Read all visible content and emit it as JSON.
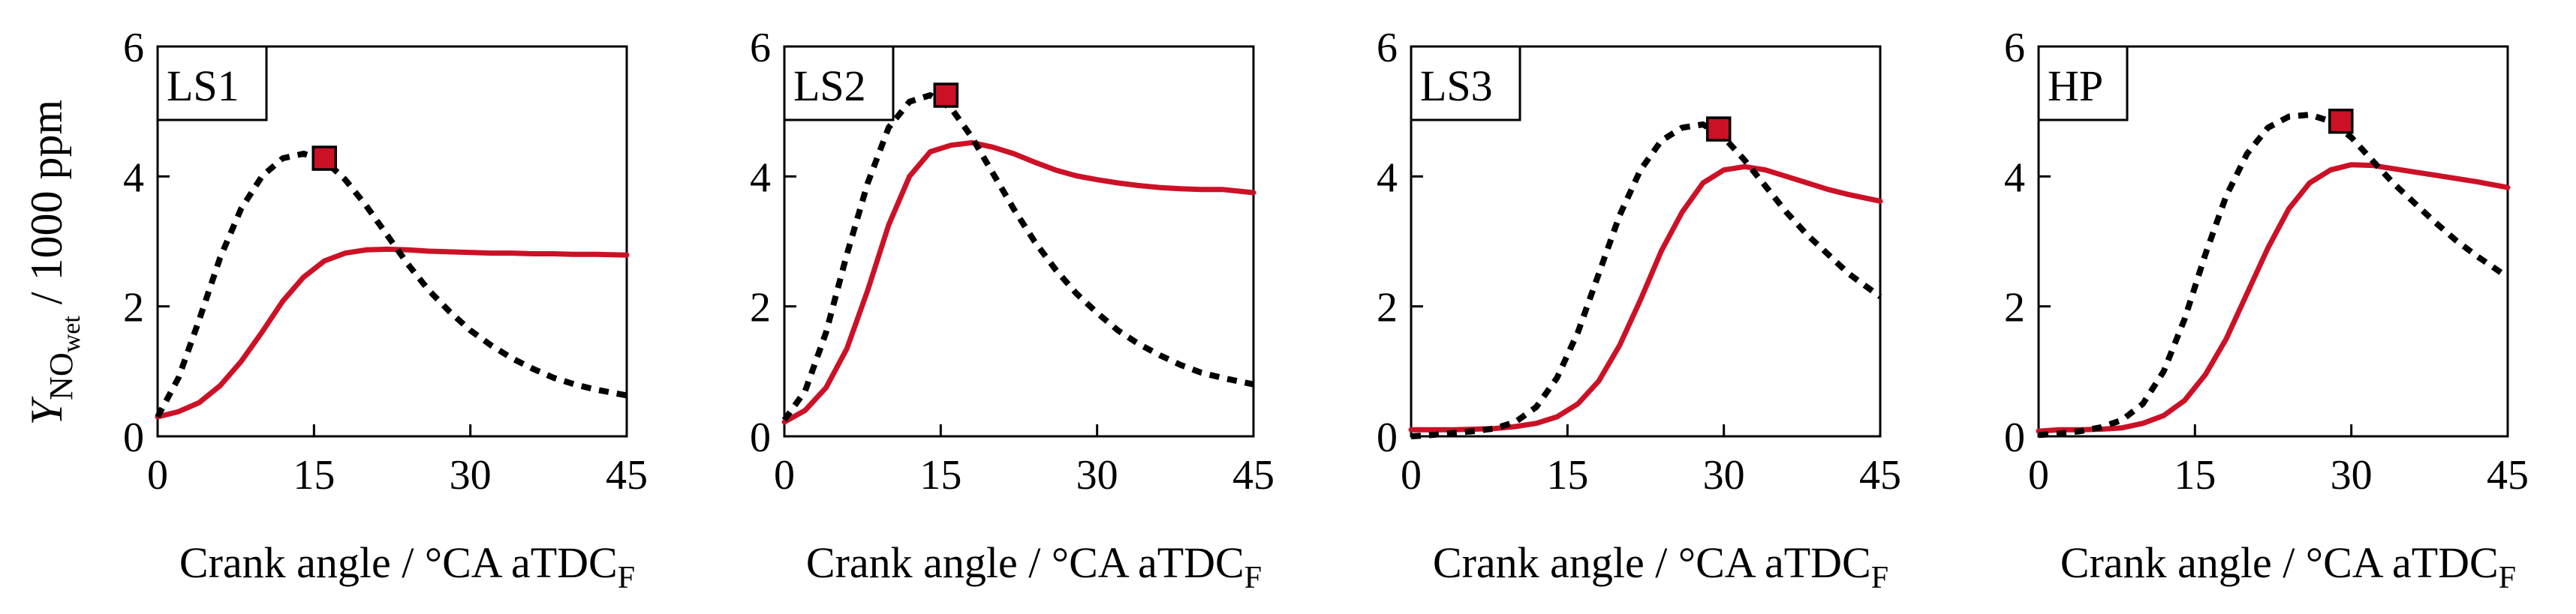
{
  "figure": {
    "ylabel_main": "Y",
    "ylabel_sub": "NO",
    "ylabel_subsub": "wet",
    "ylabel_unit": " / 1000 ppm",
    "xlabel_main": "Crank angle / °CA aTDC",
    "xlabel_sub": "F"
  },
  "chart_data": [
    {
      "type": "line",
      "title": "LS1",
      "xlim": [
        0,
        45
      ],
      "ylim": [
        0,
        6
      ],
      "xticks": [
        0,
        15,
        30,
        45
      ],
      "yticks": [
        0,
        2,
        4,
        6
      ],
      "series": [
        {
          "name": "solid",
          "color": "#cc1126",
          "style": "solid",
          "x": [
            0,
            2,
            4,
            6,
            8,
            10,
            12,
            14,
            16,
            18,
            20,
            22,
            24,
            26,
            28,
            30,
            32,
            34,
            36,
            38,
            40,
            42,
            45
          ],
          "y": [
            0.3,
            0.38,
            0.52,
            0.78,
            1.15,
            1.6,
            2.08,
            2.45,
            2.7,
            2.82,
            2.87,
            2.88,
            2.87,
            2.85,
            2.84,
            2.83,
            2.82,
            2.82,
            2.81,
            2.81,
            2.8,
            2.8,
            2.79
          ]
        },
        {
          "name": "dashed",
          "color": "#000000",
          "style": "dashed",
          "x": [
            0,
            2,
            4,
            6,
            8,
            10,
            12,
            14,
            16,
            18,
            20,
            22,
            24,
            26,
            28,
            30,
            32,
            34,
            36,
            38,
            40,
            42,
            45
          ],
          "y": [
            0.3,
            0.9,
            1.8,
            2.75,
            3.5,
            4.0,
            4.28,
            4.35,
            4.25,
            3.95,
            3.55,
            3.1,
            2.65,
            2.25,
            1.92,
            1.63,
            1.4,
            1.2,
            1.04,
            0.9,
            0.8,
            0.72,
            0.63
          ]
        }
      ],
      "marker": {
        "x": 16,
        "y": 4.28
      }
    },
    {
      "type": "line",
      "title": "LS2",
      "xlim": [
        0,
        45
      ],
      "ylim": [
        0,
        6
      ],
      "xticks": [
        0,
        15,
        30,
        45
      ],
      "yticks": [
        0,
        2,
        4,
        6
      ],
      "series": [
        {
          "name": "solid",
          "color": "#cc1126",
          "style": "solid",
          "x": [
            0,
            2,
            4,
            6,
            8,
            10,
            12,
            14,
            16,
            18,
            20,
            22,
            24,
            26,
            28,
            30,
            32,
            34,
            36,
            38,
            40,
            42,
            45
          ],
          "y": [
            0.22,
            0.4,
            0.75,
            1.35,
            2.25,
            3.25,
            4.0,
            4.38,
            4.48,
            4.52,
            4.45,
            4.35,
            4.22,
            4.1,
            4.01,
            3.95,
            3.9,
            3.86,
            3.83,
            3.81,
            3.8,
            3.8,
            3.75
          ]
        },
        {
          "name": "dashed",
          "color": "#000000",
          "style": "dashed",
          "x": [
            0,
            2,
            4,
            6,
            8,
            10,
            12,
            14,
            16,
            18,
            20,
            22,
            24,
            26,
            28,
            30,
            32,
            34,
            36,
            38,
            40,
            42,
            45
          ],
          "y": [
            0.25,
            0.7,
            1.6,
            2.8,
            3.9,
            4.75,
            5.15,
            5.25,
            5.05,
            4.6,
            4.05,
            3.5,
            3.0,
            2.57,
            2.2,
            1.9,
            1.63,
            1.42,
            1.25,
            1.1,
            0.98,
            0.9,
            0.8
          ]
        }
      ],
      "marker": {
        "x": 15.5,
        "y": 5.25
      }
    },
    {
      "type": "line",
      "title": "LS3",
      "xlim": [
        0,
        45
      ],
      "ylim": [
        0,
        6
      ],
      "xticks": [
        0,
        15,
        30,
        45
      ],
      "yticks": [
        0,
        2,
        4,
        6
      ],
      "series": [
        {
          "name": "solid",
          "color": "#cc1126",
          "style": "solid",
          "x": [
            0,
            2,
            4,
            6,
            8,
            10,
            12,
            14,
            16,
            18,
            20,
            22,
            24,
            26,
            28,
            30,
            32,
            34,
            36,
            38,
            40,
            42,
            45
          ],
          "y": [
            0.1,
            0.1,
            0.1,
            0.11,
            0.12,
            0.15,
            0.2,
            0.3,
            0.5,
            0.85,
            1.4,
            2.1,
            2.85,
            3.45,
            3.9,
            4.1,
            4.15,
            4.1,
            4.0,
            3.9,
            3.8,
            3.72,
            3.62
          ]
        },
        {
          "name": "dashed",
          "color": "#000000",
          "style": "dashed",
          "x": [
            0,
            2,
            4,
            6,
            8,
            10,
            12,
            14,
            16,
            18,
            20,
            22,
            24,
            26,
            28,
            30,
            32,
            34,
            36,
            38,
            40,
            42,
            45
          ],
          "y": [
            0.0,
            0.02,
            0.05,
            0.08,
            0.12,
            0.22,
            0.45,
            0.9,
            1.6,
            2.5,
            3.4,
            4.1,
            4.55,
            4.75,
            4.8,
            4.6,
            4.25,
            3.85,
            3.45,
            3.1,
            2.8,
            2.5,
            2.15
          ]
        }
      ],
      "marker": {
        "x": 29.5,
        "y": 4.73
      }
    },
    {
      "type": "line",
      "title": "HP",
      "xlim": [
        0,
        45
      ],
      "ylim": [
        0,
        6
      ],
      "xticks": [
        0,
        15,
        30,
        45
      ],
      "yticks": [
        0,
        2,
        4,
        6
      ],
      "series": [
        {
          "name": "solid",
          "color": "#cc1126",
          "style": "solid",
          "x": [
            0,
            2,
            4,
            6,
            8,
            10,
            12,
            14,
            16,
            18,
            20,
            22,
            24,
            26,
            28,
            30,
            32,
            34,
            36,
            38,
            40,
            42,
            45
          ],
          "y": [
            0.08,
            0.1,
            0.1,
            0.11,
            0.13,
            0.2,
            0.32,
            0.55,
            0.95,
            1.5,
            2.2,
            2.9,
            3.5,
            3.9,
            4.1,
            4.18,
            4.17,
            4.12,
            4.07,
            4.02,
            3.97,
            3.92,
            3.83
          ]
        },
        {
          "name": "dashed",
          "color": "#000000",
          "style": "dashed",
          "x": [
            0,
            2,
            4,
            6,
            8,
            10,
            12,
            14,
            16,
            18,
            20,
            22,
            24,
            26,
            28,
            30,
            32,
            34,
            36,
            38,
            40,
            42,
            45
          ],
          "y": [
            0.02,
            0.04,
            0.08,
            0.14,
            0.25,
            0.5,
            1.0,
            1.8,
            2.8,
            3.7,
            4.35,
            4.75,
            4.92,
            4.95,
            4.85,
            4.6,
            4.25,
            3.9,
            3.6,
            3.3,
            3.02,
            2.78,
            2.45
          ]
        }
      ],
      "marker": {
        "x": 29,
        "y": 4.85
      }
    }
  ]
}
